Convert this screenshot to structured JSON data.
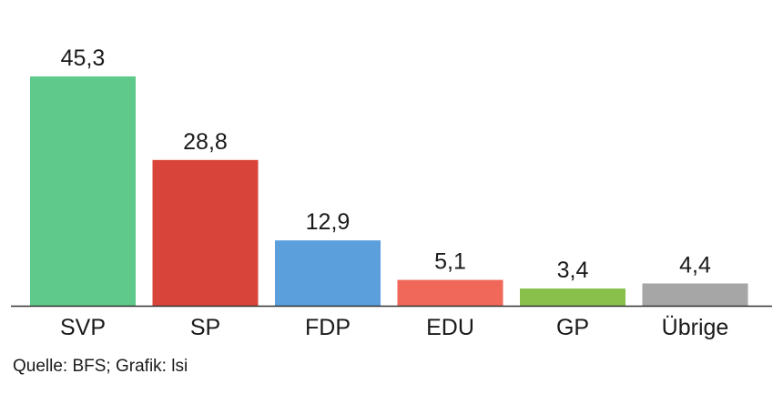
{
  "chart_data": {
    "type": "bar",
    "title": "",
    "xlabel": "",
    "ylabel": "",
    "ylim": [
      0,
      45.3
    ],
    "grid": false,
    "categories": [
      "SVP",
      "SP",
      "FDP",
      "EDU",
      "GP",
      "Übrige"
    ],
    "values": [
      45.3,
      28.8,
      12.9,
      5.1,
      3.4,
      4.4
    ],
    "value_labels": [
      "45,3",
      "28,8",
      "12,9",
      "5,1",
      "3,4",
      "4,4"
    ],
    "colors": [
      "#5ec98a",
      "#d9443a",
      "#5b9fdd",
      "#f0685a",
      "#88c04b",
      "#a6a6a6"
    ]
  },
  "source": "Quelle: BFS; Grafik: lsi"
}
